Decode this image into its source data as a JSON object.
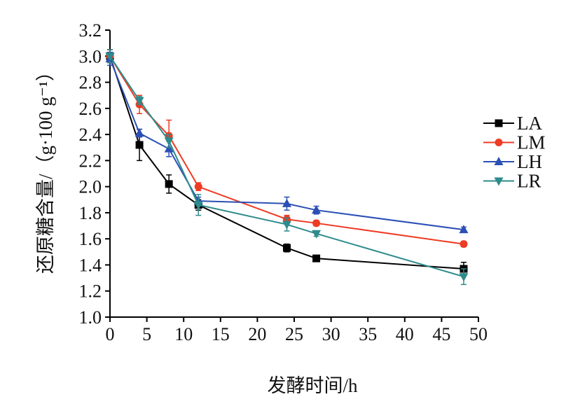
{
  "chart_data": {
    "type": "line",
    "title": "",
    "xlabel": "发酵时间/h",
    "ylabel": "还原糖含量/（g·100 g⁻¹）",
    "xlim": [
      0,
      50
    ],
    "ylim": [
      1.0,
      3.2
    ],
    "x_ticks": [
      "0",
      "5",
      "10",
      "15",
      "20",
      "25",
      "30",
      "35",
      "40",
      "45",
      "50"
    ],
    "y_ticks": [
      "1.0",
      "1.2",
      "1.4",
      "1.6",
      "1.8",
      "2.0",
      "2.2",
      "2.4",
      "2.6",
      "2.8",
      "3.0",
      "3.2"
    ],
    "grid": false,
    "legend_position": "right",
    "x": [
      0,
      4,
      8,
      12,
      24,
      28,
      48
    ],
    "series": [
      {
        "name": "LA",
        "color": "#000000",
        "marker": "square",
        "values": [
          3.0,
          2.32,
          2.02,
          1.86,
          1.53,
          1.45,
          1.37
        ],
        "errors": [
          0.05,
          0.12,
          0.07,
          0.04,
          0.03,
          0.02,
          0.05
        ]
      },
      {
        "name": "LM",
        "color": "#ee3b24",
        "marker": "circle",
        "values": [
          3.0,
          2.63,
          2.39,
          2.0,
          1.75,
          1.72,
          1.56
        ],
        "errors": [
          0.05,
          0.07,
          0.12,
          0.03,
          0.03,
          0.02,
          0.02
        ]
      },
      {
        "name": "LH",
        "color": "#2b4fb5",
        "marker": "triangle-up",
        "values": [
          2.98,
          2.41,
          2.29,
          1.89,
          1.87,
          1.82,
          1.67
        ],
        "errors": [
          0.05,
          0.03,
          0.06,
          0.03,
          0.05,
          0.03,
          0.02
        ]
      },
      {
        "name": "LR",
        "color": "#2e8b8b",
        "marker": "triangle-down",
        "values": [
          3.0,
          2.66,
          2.35,
          1.86,
          1.71,
          1.64,
          1.31
        ],
        "errors": [
          0.05,
          0.03,
          0.05,
          0.08,
          0.05,
          0.02,
          0.06
        ]
      }
    ]
  }
}
